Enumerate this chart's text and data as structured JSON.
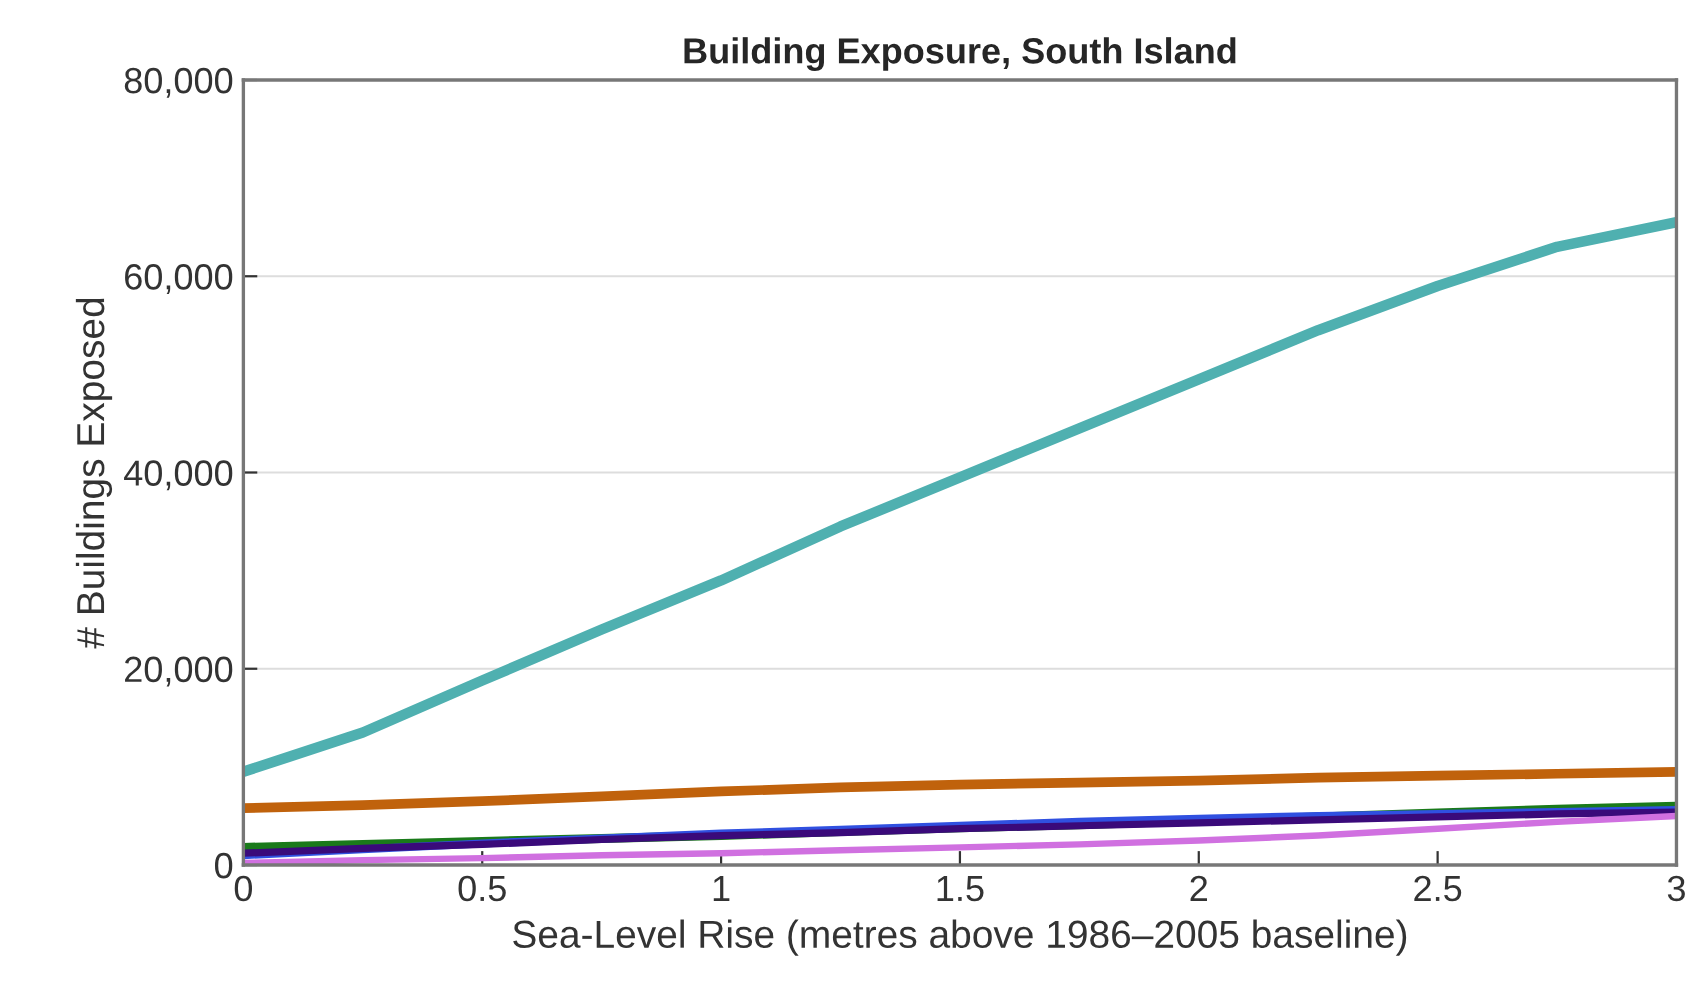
{
  "chart_data": {
    "type": "line",
    "title": "Building Exposure, South Island",
    "xlabel": "Sea-Level Rise (metres above 1986–2005 baseline)",
    "ylabel": "# Buildings Exposed",
    "x": [
      0,
      0.25,
      0.5,
      0.75,
      1,
      1.25,
      1.5,
      1.75,
      2,
      2.25,
      2.5,
      2.75,
      3
    ],
    "series": [
      {
        "color": "#4fb0b0",
        "values": [
          9500,
          13500,
          18800,
          24000,
          29000,
          34500,
          39500,
          44500,
          49500,
          54500,
          59000,
          63000,
          65500
        ]
      },
      {
        "color": "#c0620c",
        "values": [
          5800,
          6100,
          6500,
          7000,
          7500,
          7900,
          8200,
          8400,
          8600,
          8900,
          9100,
          9300,
          9500
        ]
      },
      {
        "color": "#1a7a1a",
        "values": [
          1800,
          2100,
          2400,
          2700,
          3000,
          3400,
          3800,
          4100,
          4500,
          4900,
          5300,
          5700,
          6000
        ]
      },
      {
        "color": "#3050e0",
        "values": [
          1000,
          1600,
          2200,
          2700,
          3200,
          3600,
          4000,
          4400,
          4700,
          5000,
          5200,
          5400,
          5600
        ]
      },
      {
        "color": "#3a0a7a",
        "values": [
          1200,
          1700,
          2100,
          2600,
          3000,
          3300,
          3700,
          4000,
          4300,
          4600,
          4900,
          5200,
          5400
        ]
      },
      {
        "color": "#d070e0",
        "values": [
          200,
          500,
          700,
          1000,
          1200,
          1500,
          1800,
          2100,
          2500,
          3000,
          3700,
          4400,
          5000
        ]
      }
    ],
    "xlim": [
      0,
      3
    ],
    "xticks": [
      {
        "value": 0,
        "label": "0"
      },
      0.5,
      {
        "value": 1,
        "label": "1"
      },
      1.5,
      {
        "value": 2,
        "label": "2"
      },
      2.5,
      {
        "value": 3,
        "label": "3"
      }
    ],
    "ylim": [
      0,
      80000
    ],
    "yticks": [
      {
        "value": 0,
        "label": "0"
      },
      {
        "value": 20000,
        "label": "20,000"
      },
      {
        "value": 40000,
        "label": "40,000"
      },
      {
        "value": 60000,
        "label": "60,000"
      },
      {
        "value": 80000,
        "label": "80,000"
      }
    ],
    "grid": "y",
    "legend": false
  }
}
